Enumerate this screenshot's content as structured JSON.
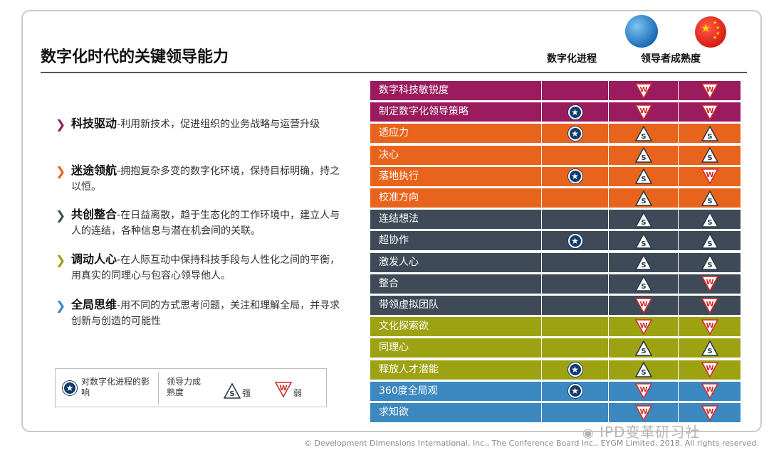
{
  "title": "数字化时代的关键领导能力",
  "column_headers": [
    "数字化进程",
    "领导者成熟度"
  ],
  "icons": {
    "global": "globe-icon",
    "china": "china-flag-icon"
  },
  "bullets": [
    {
      "head": "科技驱动",
      "text": "-利用新技术，促进组织的业务战略与运营升级",
      "color": "#8e1b5a"
    },
    {
      "head": "迷途领航",
      "text": "-拥抱复杂多变的数字化环境，保持目标明确，持之以恒。",
      "color": "#e0641b"
    },
    {
      "head": "共创整合",
      "text": "-在日益离散，趋于生态化的工作环境中，建立人与人的连结，各种信息与潜在机会间的关联。",
      "color": "#3e4a57"
    },
    {
      "head": "调动人心",
      "text": "-在人际互动中保持科技手段与人性化之间的平衡，用真实的同理心与包容心领导他人。",
      "color": "#9aa00a"
    },
    {
      "head": "全局思维",
      "text": "-用不同的方式思考问题，关注和理解全局，并寻求创新与创造的可能性",
      "color": "#3a86bf"
    }
  ],
  "legend": {
    "impact": "对数字化进程的影响",
    "maturity": "领导力成熟度",
    "strong": "强",
    "weak": "弱"
  },
  "colors": {
    "magenta": "#9a1b5e",
    "orange": "#e8641c",
    "slate": "#3e4a57",
    "olive": "#9da213",
    "blue": "#3c88c0"
  },
  "rows": [
    {
      "label": "数字科技敏锐度",
      "group": "magenta",
      "digital": false,
      "global": "W",
      "china": "W"
    },
    {
      "label": "制定数字化领导策略",
      "group": "magenta",
      "digital": true,
      "global": "W",
      "china": "W"
    },
    {
      "label": "适应力",
      "group": "orange",
      "digital": true,
      "global": "S",
      "china": "S"
    },
    {
      "label": "决心",
      "group": "orange",
      "digital": false,
      "global": "S",
      "china": "S"
    },
    {
      "label": "落地执行",
      "group": "orange",
      "digital": true,
      "global": "S",
      "china": "W"
    },
    {
      "label": "校准方向",
      "group": "orange",
      "digital": false,
      "global": "S",
      "china": "S"
    },
    {
      "label": "连结想法",
      "group": "slate",
      "digital": false,
      "global": "S",
      "china": "S"
    },
    {
      "label": "超协作",
      "group": "slate",
      "digital": true,
      "global": "S",
      "china": "S"
    },
    {
      "label": "激发人心",
      "group": "slate",
      "digital": false,
      "global": "S",
      "china": "S"
    },
    {
      "label": "整合",
      "group": "slate",
      "digital": false,
      "global": "S",
      "china": "W"
    },
    {
      "label": "带领虚拟团队",
      "group": "slate",
      "digital": false,
      "global": "W",
      "china": "W"
    },
    {
      "label": "文化探索欲",
      "group": "olive",
      "digital": false,
      "global": "W",
      "china": "W"
    },
    {
      "label": "同理心",
      "group": "olive",
      "digital": false,
      "global": "S",
      "china": "S"
    },
    {
      "label": "释放人才潜能",
      "group": "olive",
      "digital": true,
      "global": "S",
      "china": "W"
    },
    {
      "label": "360度全局观",
      "group": "blue",
      "digital": true,
      "global": "W",
      "china": "W"
    },
    {
      "label": "求知欲",
      "group": "blue",
      "digital": false,
      "global": "W",
      "china": "W"
    }
  ],
  "footer": "© Development Dimensions International, Inc., The Conference Board Inc., EYGM Limited, 2018. All rights reserved.",
  "watermark": "IPD变革研习社"
}
